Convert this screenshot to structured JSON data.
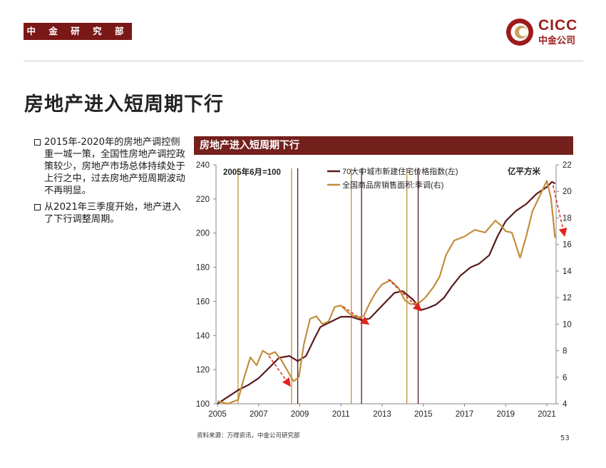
{
  "header": {
    "section_tag": "中 金 研 究 部",
    "logo_top": "CICC",
    "logo_bottom": "中金公司"
  },
  "page_title": "房地产进入短周期下行",
  "bullets": [
    "2015年-2020年的房地产调控侧重一城一策，全国性房地产调控政策较少，房地产市场总体持续处于上行之中，过去房地产短周期波动不再明显。",
    "从2021年三季度开始，地产进入了下行调整周期。"
  ],
  "chart_header": "房地产进入短周期下行",
  "chart_data": {
    "type": "line",
    "title": "房地产进入短周期下行",
    "annotation_base": "2005年6月=100",
    "right_unit": "亿平方米",
    "x_ticks": [
      "2005",
      "2007",
      "2009",
      "2011",
      "2013",
      "2015",
      "2017",
      "2019",
      "2021"
    ],
    "xlim": [
      2005,
      2021.6
    ],
    "y_left": {
      "min": 100,
      "max": 240,
      "ticks": [
        "100",
        "120",
        "140",
        "160",
        "180",
        "200",
        "220",
        "240"
      ]
    },
    "y_right": {
      "min": 4,
      "max": 22,
      "ticks": [
        "4",
        "6",
        "8",
        "10",
        "12",
        "14",
        "16",
        "18",
        "20",
        "22"
      ]
    },
    "series": [
      {
        "name": "70大中城市新建住宅价格指数(左)",
        "axis": "left",
        "color": "#5a1a1c",
        "x": [
          2005.0,
          2005.5,
          2006.0,
          2006.5,
          2007.0,
          2007.5,
          2008.0,
          2008.5,
          2008.9,
          2009.3,
          2009.7,
          2010.0,
          2010.5,
          2011.0,
          2011.5,
          2012.0,
          2012.4,
          2012.8,
          2013.2,
          2013.6,
          2014.0,
          2014.5,
          2014.9,
          2015.2,
          2015.6,
          2016.0,
          2016.4,
          2016.8,
          2017.3,
          2017.7,
          2018.2,
          2018.6,
          2019.0,
          2019.5,
          2020.0,
          2020.5,
          2021.0,
          2021.25,
          2021.4
        ],
        "values": [
          100,
          104,
          108,
          111,
          115,
          121,
          127,
          128,
          125,
          128,
          138,
          145,
          148,
          151,
          151,
          149,
          150,
          155,
          160,
          165,
          166,
          161,
          155,
          156,
          158,
          162,
          169,
          175,
          180,
          182,
          187,
          198,
          207,
          213,
          217,
          223,
          227,
          230,
          229
        ]
      },
      {
        "name": "全国商品房销售面积:季调(右)",
        "axis": "right",
        "color": "#c28e3a",
        "x": [
          2005.0,
          2005.5,
          2006.0,
          2006.3,
          2006.6,
          2006.9,
          2007.2,
          2007.5,
          2007.8,
          2008.1,
          2008.4,
          2008.7,
          2008.95,
          2009.2,
          2009.5,
          2009.8,
          2010.1,
          2010.4,
          2010.7,
          2011.0,
          2011.4,
          2011.8,
          2012.1,
          2012.4,
          2012.7,
          2013.0,
          2013.4,
          2013.8,
          2014.1,
          2014.4,
          2014.8,
          2015.1,
          2015.5,
          2015.8,
          2016.1,
          2016.5,
          2017.0,
          2017.5,
          2018.0,
          2018.5,
          2018.8,
          2019.0,
          2019.3,
          2019.7,
          2020.0,
          2020.3,
          2020.7,
          2021.0,
          2021.2,
          2021.4
        ],
        "values": [
          4.2,
          4.0,
          4.3,
          6.0,
          7.5,
          6.9,
          8.0,
          7.7,
          7.9,
          7.3,
          6.5,
          5.7,
          6.0,
          8.5,
          10.4,
          10.6,
          10.0,
          10.2,
          11.3,
          11.4,
          10.8,
          10.5,
          10.6,
          11.6,
          12.4,
          13.0,
          13.3,
          12.7,
          11.8,
          11.5,
          11.6,
          12.0,
          12.8,
          13.6,
          15.2,
          16.3,
          16.6,
          17.1,
          16.9,
          17.8,
          17.4,
          17.0,
          16.9,
          15.0,
          16.6,
          18.5,
          19.8,
          20.8,
          19.5,
          16.5
        ]
      }
    ],
    "cycle_lines": [
      {
        "x": 2006.0,
        "color": "#c28e3a"
      },
      {
        "x": 2008.6,
        "color": "#c28e3a"
      },
      {
        "x": 2008.9,
        "color": "#5a1a1c"
      },
      {
        "x": 2011.5,
        "color": "#c28e3a"
      },
      {
        "x": 2012.0,
        "color": "#5a1a1c"
      },
      {
        "x": 2014.2,
        "color": "#c28e3a"
      },
      {
        "x": 2014.75,
        "color": "#5a1a1c"
      }
    ],
    "down_arrows": [
      {
        "x1": 2007.5,
        "y1": 128,
        "x2": 2008.5,
        "y2": 111
      },
      {
        "x1": 2011.1,
        "y1": 157,
        "x2": 2012.3,
        "y2": 147
      },
      {
        "x1": 2013.3,
        "y1": 173,
        "x2": 2014.85,
        "y2": 155
      },
      {
        "x1": 2021.3,
        "y1": 228,
        "x2": 2021.85,
        "y2": 199
      }
    ]
  },
  "source": "资料来源：万得资讯，中金公司研究部",
  "page_number": "53"
}
